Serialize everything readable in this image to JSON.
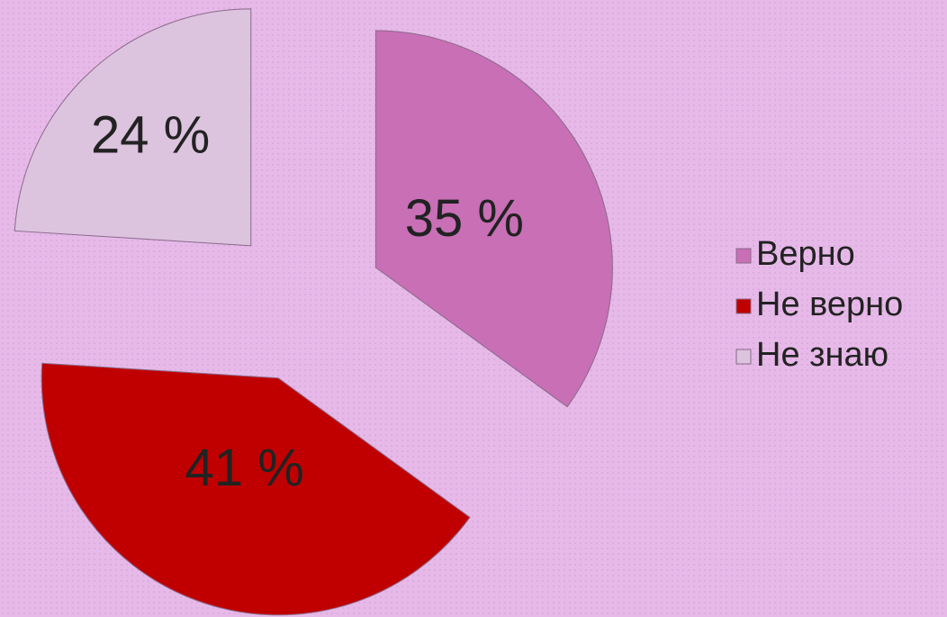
{
  "chart_data": {
    "type": "pie",
    "categories": [
      "Верно",
      "Не верно",
      "Не знаю"
    ],
    "values": [
      35,
      41,
      24
    ],
    "value_labels": [
      "35 %",
      "41 %",
      "24 %"
    ],
    "colors": [
      "#c86fb6",
      "#c00000",
      "#dcc3de"
    ],
    "legend": "right"
  }
}
